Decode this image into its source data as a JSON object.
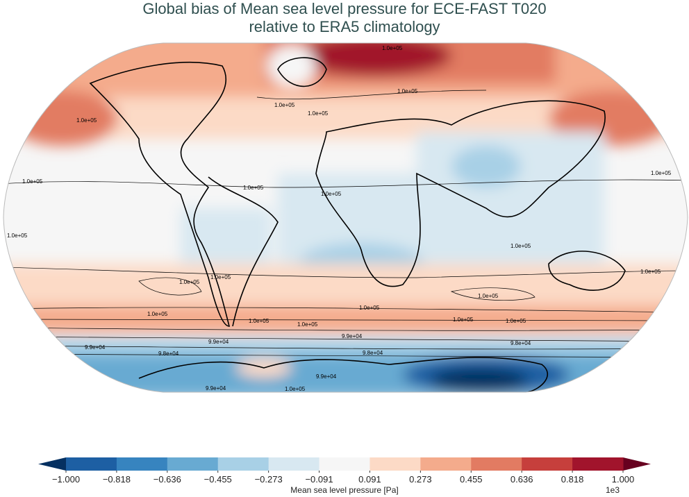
{
  "title_line1": "Global bias of Mean sea level pressure for ECE-FAST T020",
  "title_line2": "relative to ERA5 climatology",
  "colorbar": {
    "label": "Mean sea level pressure [Pa]",
    "exponent": "1e3",
    "ticks": [
      "−1.000",
      "−0.818",
      "−0.636",
      "−0.455",
      "−0.273",
      "−0.091",
      "0.091",
      "0.273",
      "0.455",
      "0.636",
      "0.818",
      "1.000"
    ],
    "colors": [
      "#1d5fa3",
      "#3784bf",
      "#68aad2",
      "#a8d0e6",
      "#d8e8f1",
      "#f6f6f6",
      "#fcdac6",
      "#f4ab8c",
      "#e27b62",
      "#c63f3c",
      "#a1142c"
    ],
    "extend_low": "#053061",
    "extend_high": "#67001f"
  },
  "contour_labels": [
    "1.0e+05",
    "1.0e+05",
    "1.0e+05",
    "1.0e+05",
    "1.0e+05",
    "1.0e+05",
    "1.0e+05",
    "1.0e+05",
    "1.0e+05",
    "1.0e+05",
    "1.0e+05",
    "1.0e+05",
    "1.0e+05",
    "1.0e+05",
    "1.0e+05",
    "1.0e+05",
    "1.0e+05",
    "1.0e+05",
    "1.0e+05",
    "1.0e+05",
    "9.9e+04",
    "9.9e+04",
    "9.8e+04",
    "9.8e+04",
    "9.9e+04",
    "9.8e+04",
    "9.9e+04",
    "9.9e+04",
    "1.0e+05",
    "1.0e+05"
  ]
}
